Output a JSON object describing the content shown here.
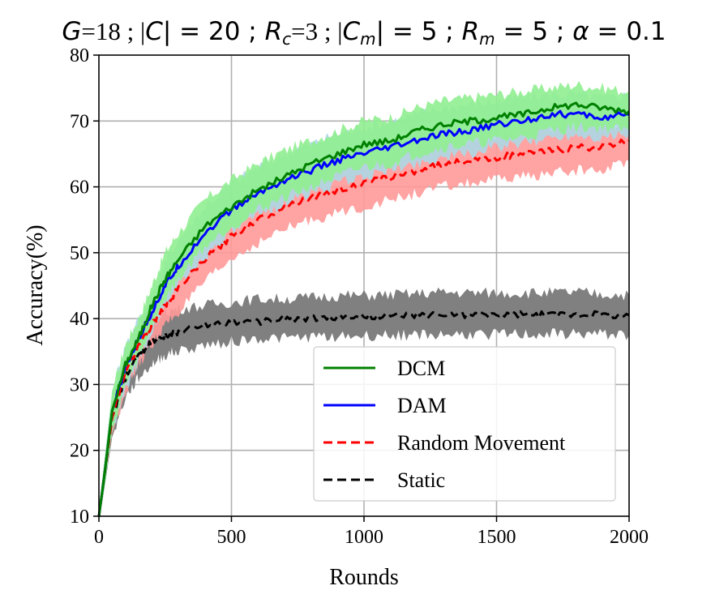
{
  "chart_data": {
    "type": "line",
    "title": "G=18 ; |C| = 20 ; Rc=3 ; |Cm| = 5 ; Rm = 5 ; α = 0.1",
    "title_parts": {
      "g": "G",
      "g_val": "=18 ; |",
      "c": "C",
      "c_val": "| = 20 ; ",
      "rc": "R",
      "rc_sub": "c",
      "rc_val": "=3 ; |",
      "cm": "C",
      "cm_sub": "m",
      "cm_val": "| = 5 ; ",
      "rm": "R",
      "rm_sub": "m",
      "rm_val": " = 5 ; ",
      "alpha": "α",
      "alpha_val": " = 0.1"
    },
    "xlabel": "Rounds",
    "ylabel": "Accuracy(%)",
    "xlim": [
      0,
      2000
    ],
    "ylim": [
      10,
      80
    ],
    "x_ticks": [
      0,
      500,
      1000,
      1500,
      2000
    ],
    "y_ticks": [
      10,
      20,
      30,
      40,
      50,
      60,
      70,
      80
    ],
    "grid": true,
    "legend_position": "lower-right",
    "series": [
      {
        "name": "DCM",
        "color": "#008000",
        "band_color": "#90ee90",
        "dash": "solid",
        "x": [
          0,
          20,
          50,
          100,
          150,
          200,
          250,
          300,
          400,
          500,
          600,
          700,
          800,
          900,
          1000,
          1100,
          1200,
          1300,
          1400,
          1500,
          1600,
          1700,
          1800,
          1900,
          2000
        ],
        "values": [
          10,
          16,
          26,
          33,
          37,
          42,
          46,
          49,
          54,
          57,
          59.5,
          61.5,
          63.5,
          65,
          66.5,
          67,
          68.5,
          69.5,
          70,
          70.5,
          71,
          72,
          72.5,
          72,
          71.5
        ],
        "upper": [
          11,
          18,
          29,
          36,
          40,
          45,
          50,
          53,
          58,
          61,
          63.5,
          65.5,
          67,
          68.5,
          70,
          70.5,
          72,
          73,
          73.5,
          74,
          74.5,
          75,
          75.5,
          75,
          74.5
        ],
        "lower": [
          9,
          14,
          23,
          30,
          34,
          39,
          43,
          46,
          51,
          54,
          56.5,
          58.5,
          60,
          61.5,
          63,
          63.5,
          65,
          66,
          66.5,
          67,
          67.5,
          68.5,
          69,
          69,
          68.5
        ]
      },
      {
        "name": "DAM",
        "color": "#0000ff",
        "band_color": "#add8e6",
        "dash": "solid",
        "x": [
          0,
          20,
          50,
          100,
          150,
          200,
          250,
          300,
          400,
          500,
          600,
          700,
          800,
          900,
          1000,
          1100,
          1200,
          1300,
          1400,
          1500,
          1600,
          1700,
          1800,
          1900,
          2000
        ],
        "values": [
          10,
          16,
          26,
          32.5,
          37,
          41,
          45,
          48,
          53,
          56.5,
          59,
          61,
          62.5,
          64,
          65,
          66,
          67,
          68,
          68.5,
          69.5,
          70,
          71,
          71,
          70.5,
          71
        ],
        "upper": [
          11,
          18,
          29,
          36,
          40,
          44,
          48.5,
          52,
          57,
          60.5,
          63,
          65,
          66.5,
          68,
          69,
          70,
          71,
          72,
          72.5,
          73,
          73.5,
          74,
          74,
          73.5,
          74
        ],
        "lower": [
          9,
          14,
          23,
          29,
          33.5,
          38,
          42,
          45,
          49.5,
          53,
          55.5,
          57.5,
          59,
          60.5,
          61.5,
          62.5,
          63.5,
          64.5,
          65,
          66,
          66.5,
          67.5,
          68,
          67.5,
          68
        ]
      },
      {
        "name": "Random Movement",
        "color": "#ff0000",
        "band_color": "#ff9999",
        "dash": "dashed",
        "x": [
          0,
          20,
          50,
          100,
          150,
          200,
          250,
          300,
          400,
          500,
          600,
          700,
          800,
          900,
          1000,
          1100,
          1200,
          1300,
          1400,
          1500,
          1600,
          1700,
          1800,
          1900,
          2000
        ],
        "values": [
          10,
          16,
          25,
          32,
          36,
          39,
          42,
          44.5,
          49,
          52.5,
          55,
          57,
          58.5,
          59.5,
          60.5,
          61.5,
          62.5,
          63.5,
          64,
          64.5,
          65,
          65.5,
          66,
          66,
          67
        ],
        "upper": [
          11,
          17.5,
          27.5,
          35,
          39,
          42,
          45,
          48,
          52.5,
          56,
          58.5,
          60.5,
          62,
          63,
          64,
          65,
          66,
          67,
          67.5,
          68,
          68.5,
          69,
          69.5,
          69.5,
          70
        ],
        "lower": [
          9,
          14.5,
          22.5,
          29,
          33,
          36,
          39,
          41,
          45.5,
          49,
          51.5,
          53.5,
          55,
          56,
          57,
          58,
          59,
          60,
          60.5,
          61,
          61.5,
          62,
          62.5,
          62.5,
          64
        ]
      },
      {
        "name": "Static",
        "color": "#000000",
        "band_color": "#808080",
        "dash": "dashed",
        "x": [
          0,
          20,
          50,
          100,
          150,
          200,
          250,
          300,
          400,
          500,
          600,
          700,
          800,
          900,
          1000,
          1100,
          1200,
          1300,
          1400,
          1500,
          1600,
          1700,
          1800,
          1900,
          2000
        ],
        "values": [
          10,
          16,
          25,
          31,
          34.5,
          36.5,
          37.5,
          38,
          39,
          39.5,
          39.5,
          40,
          40,
          40.2,
          40.3,
          40.4,
          40.5,
          40.6,
          40.6,
          40.6,
          40.6,
          40.6,
          40.7,
          40.6,
          40.5
        ],
        "upper": [
          11,
          18,
          28,
          34,
          38,
          40,
          41,
          41.5,
          42,
          42.5,
          43,
          43,
          43.2,
          43.5,
          43.5,
          43.6,
          43.8,
          44,
          43.9,
          43.9,
          43.9,
          43.9,
          44,
          43.7,
          43.6
        ],
        "lower": [
          9,
          14,
          22,
          28,
          31,
          33,
          34.5,
          35,
          36,
          36.5,
          37,
          37,
          37.2,
          37.3,
          37.4,
          37.5,
          37.5,
          37.6,
          37.6,
          37.6,
          37.6,
          37.6,
          37.7,
          37.6,
          37.5
        ]
      }
    ]
  }
}
